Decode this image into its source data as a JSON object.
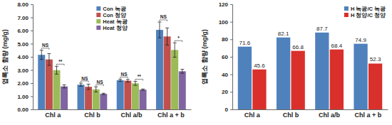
{
  "chart_data": [
    {
      "type": "bar",
      "ylabel": "엽록소 함량 (mg/g)",
      "categories": [
        "Chl a",
        "Chl b",
        "Chl a/b",
        "Chl a + b"
      ],
      "series": [
        {
          "name": "Con 녹광",
          "color": "#4f81bd",
          "values": [
            4.15,
            1.88,
            2.22,
            6.05
          ],
          "errors": [
            0.35,
            0.12,
            0.08,
            0.6
          ]
        },
        {
          "name": "Con 청양",
          "color": "#c0504d",
          "values": [
            3.8,
            1.72,
            2.18,
            5.55
          ],
          "errors": [
            0.45,
            0.2,
            0.1,
            0.65
          ]
        },
        {
          "name": "Heat 녹광",
          "color": "#9bbb59",
          "values": [
            2.98,
            1.52,
            1.98,
            4.52
          ],
          "errors": [
            0.3,
            0.2,
            0.15,
            0.55
          ]
        },
        {
          "name": "Heat 청양",
          "color": "#8064a2",
          "values": [
            1.75,
            1.18,
            1.5,
            2.9
          ],
          "errors": [
            0.12,
            0.05,
            0.05,
            0.15
          ]
        }
      ],
      "ylim": [
        0,
        8
      ],
      "yticks": [
        {
          "value": 0,
          "label": "0.00"
        },
        {
          "value": 1,
          "label": "1.00"
        },
        {
          "value": 2,
          "label": "2.00"
        },
        {
          "value": 3,
          "label": "3.00"
        },
        {
          "value": 4,
          "label": "4.00"
        },
        {
          "value": 5,
          "label": "5.00"
        },
        {
          "value": 6,
          "label": "6.00"
        },
        {
          "value": 7,
          "label": "7.00"
        },
        {
          "value": 8,
          "label": "8.00"
        }
      ],
      "legend": "upper center",
      "annotations": [
        {
          "text": "NS",
          "category": "Chl a",
          "series": [
            "Con 녹광",
            "Con 청양"
          ]
        },
        {
          "text": "**",
          "category": "Chl a",
          "series": [
            "Heat 녹광",
            "Heat 청양"
          ]
        },
        {
          "text": "NS",
          "category": "Chl b",
          "series": [
            "Con 녹광",
            "Con 청양"
          ]
        },
        {
          "text": "NS",
          "category": "Chl b",
          "series": [
            "Heat 녹광",
            "Heat 청양"
          ]
        },
        {
          "text": "NS",
          "category": "Chl a/b",
          "series": [
            "Con 녹광",
            "Con 청양"
          ]
        },
        {
          "text": "**",
          "category": "Chl a/b",
          "series": [
            "Heat 녹광",
            "Heat 청양"
          ]
        },
        {
          "text": "NS",
          "category": "Chl a + b",
          "series": [
            "Con 녹광",
            "Con 청양"
          ]
        },
        {
          "text": "*",
          "category": "Chl a + b",
          "series": [
            "Heat 녹광",
            "Heat 청양"
          ]
        }
      ]
    },
    {
      "type": "bar",
      "ylabel": "엽록소 함량 (mg/g)",
      "categories": [
        "Chl a",
        "Chl b",
        "Chl a/b",
        "Chl a + b"
      ],
      "series": [
        {
          "name": "H 녹광/C 녹광",
          "color": "#4f81bd",
          "values": [
            71.6,
            82.1,
            87.7,
            74.9
          ]
        },
        {
          "name": "H 청양/C 청양",
          "color": "#d9302b",
          "values": [
            45.6,
            66.8,
            68.4,
            52.3
          ]
        }
      ],
      "ylim": [
        0,
        120
      ],
      "yticks": [
        0,
        20,
        40,
        60,
        80,
        100,
        120
      ],
      "legend": "upper right",
      "data_labels": true
    }
  ]
}
